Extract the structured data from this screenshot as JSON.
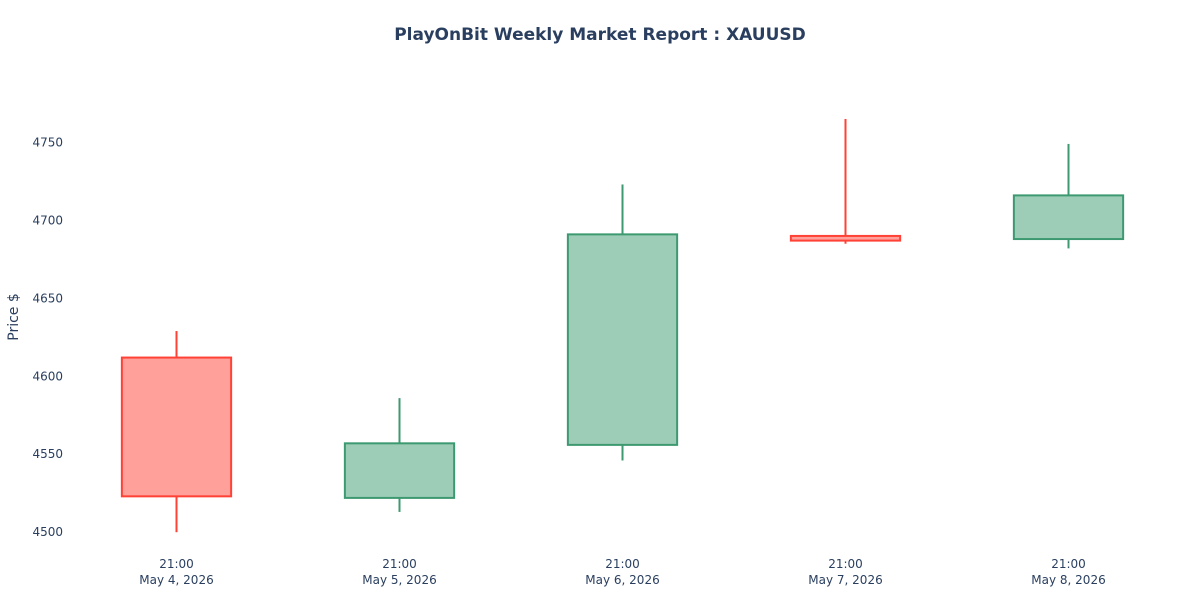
{
  "chart_data": {
    "type": "candlestick",
    "title": "PlayOnBit Weekly Market Report : XAUUSD",
    "xlabel": "",
    "ylabel": "Price $",
    "ylim": [
      4495,
      4790
    ],
    "yticks": [
      4500,
      4550,
      4600,
      4650,
      4700,
      4750
    ],
    "grid": false,
    "legend": "none",
    "colors": {
      "increasing_line": "#3d9970",
      "increasing_fill": "#9ecdb7",
      "decreasing_line": "#ff4136",
      "decreasing_fill": "#ffa09b",
      "text": "#2a3f5f"
    },
    "candles": [
      {
        "time": "21:00",
        "date": "May 4, 2026",
        "open": 4612,
        "high": 4629,
        "low": 4500,
        "close": 4523
      },
      {
        "time": "21:00",
        "date": "May 5, 2026",
        "open": 4522,
        "high": 4586,
        "low": 4513,
        "close": 4557
      },
      {
        "time": "21:00",
        "date": "May 6, 2026",
        "open": 4556,
        "high": 4723,
        "low": 4546,
        "close": 4691
      },
      {
        "time": "21:00",
        "date": "May 7, 2026",
        "open": 4690,
        "high": 4765,
        "low": 4685,
        "close": 4687
      },
      {
        "time": "21:00",
        "date": "May 8, 2026",
        "open": 4688,
        "high": 4749,
        "low": 4682,
        "close": 4716
      }
    ]
  }
}
